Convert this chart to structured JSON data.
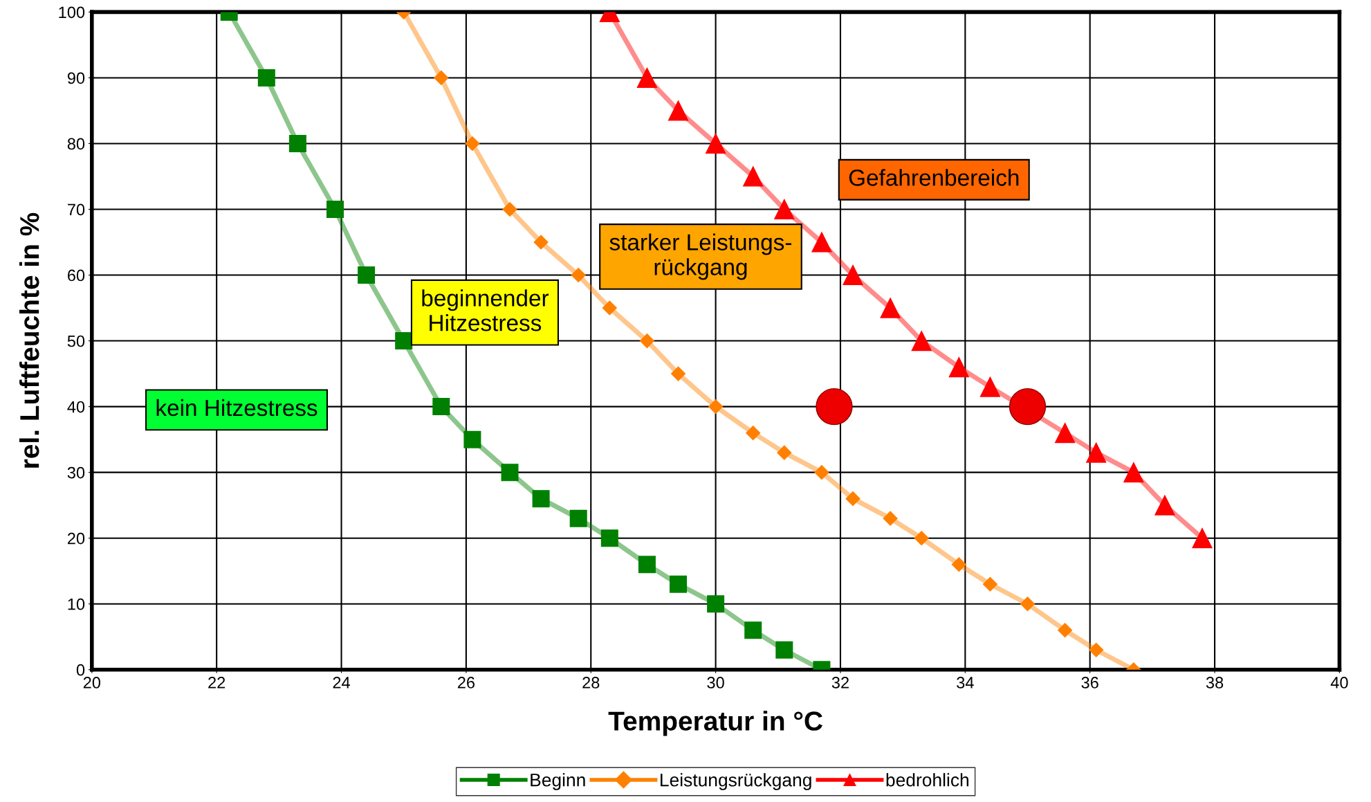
{
  "chart_data": {
    "type": "line",
    "xlabel": "Temperatur in °C",
    "ylabel": "rel. Luftfeuchte in %",
    "xlim": [
      20,
      40
    ],
    "xticks": [
      20,
      22,
      24,
      26,
      28,
      30,
      32,
      34,
      36,
      38,
      40
    ],
    "ylim": [
      0,
      100
    ],
    "yticks": [
      0,
      10,
      20,
      30,
      40,
      50,
      60,
      70,
      80,
      90,
      100
    ],
    "grid": true,
    "legend": "bottom",
    "series": [
      {
        "name": "Beginn",
        "color": "#008000",
        "marker": "square",
        "x": [
          22.2,
          22.8,
          23.3,
          23.9,
          24.4,
          25.0,
          25.6,
          26.1,
          26.7,
          27.2,
          27.8,
          28.3,
          28.9,
          29.4,
          30.0,
          30.6,
          31.1,
          31.7
        ],
        "values": [
          100,
          90,
          80,
          70,
          60,
          50,
          40,
          35,
          30,
          26,
          23,
          20,
          16,
          13,
          10,
          6,
          3,
          0
        ]
      },
      {
        "name": "Leistungsrückgang",
        "color": "#ff8000",
        "marker": "diamond",
        "x": [
          25.0,
          25.6,
          26.1,
          26.7,
          27.2,
          27.8,
          28.3,
          28.9,
          29.4,
          30.0,
          30.6,
          31.1,
          31.7,
          32.2,
          32.8,
          33.3,
          33.9,
          34.4,
          35.0,
          35.6,
          36.1,
          36.7
        ],
        "values": [
          100,
          90,
          80,
          70,
          65,
          60,
          55,
          50,
          45,
          40,
          36,
          33,
          30,
          26,
          23,
          20,
          16,
          13,
          10,
          6,
          3,
          0
        ]
      },
      {
        "name": "bedrohlich",
        "color": "#ff0000",
        "marker": "triangle",
        "x": [
          28.3,
          28.9,
          29.4,
          30.0,
          30.6,
          31.1,
          31.7,
          32.2,
          32.8,
          33.3,
          33.9,
          34.4,
          35.6,
          36.1,
          36.7,
          37.2,
          37.8
        ],
        "values": [
          100,
          90,
          85,
          80,
          75,
          70,
          65,
          60,
          55,
          50,
          46,
          43,
          36,
          33,
          30,
          25,
          20
        ]
      },
      {
        "type": "scatter",
        "color": "#ee0000",
        "marker": "circle",
        "x": [
          31.9,
          35.0
        ],
        "values": [
          40,
          40
        ]
      }
    ],
    "annotations": [
      "kein Hitzestress",
      "beginnender\nHitzestress",
      "starker Leistungs-\nrückgang",
      "Gefahrenbereich"
    ]
  }
}
